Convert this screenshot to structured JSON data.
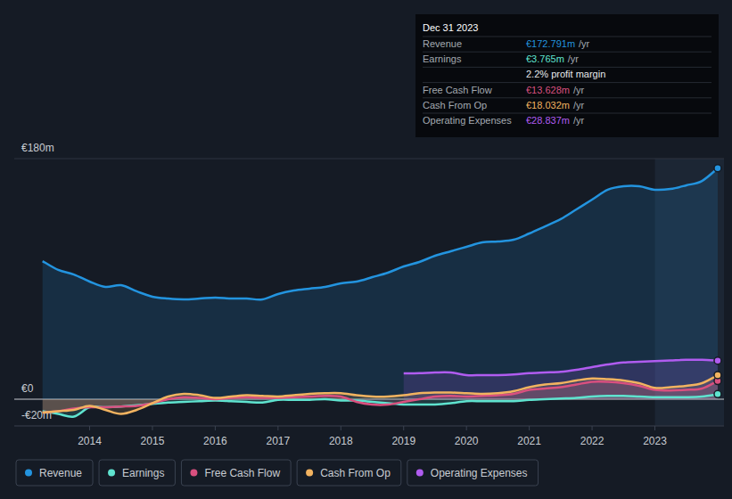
{
  "chart_data": {
    "type": "area",
    "x": [
      2013.25,
      2013.5,
      2013.75,
      2014,
      2014.25,
      2014.5,
      2014.75,
      2015,
      2015.25,
      2015.5,
      2015.75,
      2016,
      2016.25,
      2016.5,
      2016.75,
      2017,
      2017.25,
      2017.5,
      2017.75,
      2018,
      2018.25,
      2018.5,
      2018.75,
      2019,
      2019.25,
      2019.5,
      2019.75,
      2020,
      2020.25,
      2020.5,
      2020.75,
      2021,
      2021.25,
      2021.5,
      2021.75,
      2022,
      2022.25,
      2022.5,
      2022.75,
      2023,
      2023.25,
      2023.5,
      2023.75,
      2024
    ],
    "xlim": [
      2012.8,
      2024.1
    ],
    "xticks": [
      2014,
      2015,
      2016,
      2017,
      2018,
      2019,
      2020,
      2021,
      2022,
      2023
    ],
    "ylim": [
      -20,
      180
    ],
    "yticks": [
      {
        "value": -20,
        "label": "-€20m"
      },
      {
        "value": 0,
        "label": "€0"
      },
      {
        "value": 180,
        "label": "€180m"
      }
    ],
    "grid": true,
    "legend": "bottom",
    "series": [
      {
        "name": "Revenue",
        "color": "#2394df",
        "values": [
          103.3,
          96.7,
          93.3,
          88,
          84,
          85.3,
          80.7,
          76.7,
          75.3,
          74.7,
          75.3,
          76,
          75.3,
          75.3,
          74.7,
          78.7,
          81.3,
          82.7,
          84,
          86.7,
          88,
          91.3,
          94.7,
          99.3,
          102.7,
          107.3,
          110.7,
          114,
          117.3,
          118,
          119.3,
          124,
          129.3,
          134.7,
          142,
          149.3,
          156.7,
          159.3,
          159.3,
          156.7,
          157.3,
          160,
          163.3,
          172.791
        ]
      },
      {
        "name": "Earnings",
        "color": "#5fe3cf",
        "values": [
          -9,
          -11,
          -13,
          -6,
          -6,
          -5.5,
          -4.5,
          -3.5,
          -2.5,
          -2,
          -1.5,
          -1,
          -1.5,
          -2,
          -2.5,
          -0.5,
          -0.5,
          -0.5,
          0,
          -1,
          -1,
          -2,
          -3,
          -4,
          -4,
          -4,
          -3,
          -1.5,
          -1.5,
          -1.5,
          -1.5,
          -0.5,
          0,
          0.5,
          1,
          2,
          2.5,
          2.5,
          2,
          1.5,
          1.5,
          1.5,
          2,
          3.765
        ]
      },
      {
        "name": "Free Cash Flow",
        "color": "#d9507f",
        "values": [
          -10,
          -9,
          -7,
          -6,
          -6,
          -5.5,
          -5,
          -3,
          0,
          1.5,
          1,
          0,
          1,
          1.5,
          1,
          1,
          1.5,
          2,
          2.5,
          2,
          -2,
          -4,
          -4,
          -2,
          0,
          2,
          2.5,
          2,
          2.5,
          3,
          4,
          7,
          8,
          9,
          11,
          13,
          13,
          12,
          10,
          7,
          6.5,
          7,
          8,
          13.628
        ]
      },
      {
        "name": "Cash From Op",
        "color": "#f2b360",
        "values": [
          -10,
          -9,
          -8,
          -5,
          -8,
          -11,
          -8,
          -3,
          2,
          4,
          3,
          1,
          2,
          3,
          2.5,
          2,
          3,
          4,
          4.5,
          4.5,
          3,
          2,
          2,
          3,
          4.5,
          5,
          5,
          4.5,
          4,
          4.5,
          6,
          9,
          11,
          12,
          14,
          15.5,
          15,
          14,
          12,
          8.5,
          9,
          10,
          12,
          18.032
        ]
      },
      {
        "name": "Operating Expenses",
        "color": "#b05cf0",
        "values": [
          null,
          null,
          null,
          null,
          null,
          null,
          null,
          null,
          null,
          null,
          null,
          null,
          null,
          null,
          null,
          null,
          null,
          null,
          null,
          null,
          null,
          null,
          null,
          19.3,
          19.5,
          20,
          20,
          18,
          18,
          18,
          18.5,
          19.5,
          20,
          20.5,
          22,
          24,
          26,
          27.5,
          28,
          28.5,
          29,
          29.5,
          29.5,
          28.837
        ]
      }
    ],
    "tooltip": {
      "title": "Dec 31 2023",
      "unit": "/yr",
      "rows": [
        {
          "label": "Revenue",
          "value": "€172.791m"
        },
        {
          "label": "Earnings",
          "value": "€3.765m"
        },
        {
          "label": "Free Cash Flow",
          "value": "€13.628m"
        },
        {
          "label": "Cash From Op",
          "value": "€18.032m"
        },
        {
          "label": "Operating Expenses",
          "value": "€28.837m"
        }
      ],
      "note": "2.2% profit margin"
    }
  }
}
